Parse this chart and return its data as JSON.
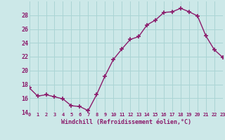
{
  "x": [
    0,
    1,
    2,
    3,
    4,
    5,
    6,
    7,
    8,
    9,
    10,
    11,
    12,
    13,
    14,
    15,
    16,
    17,
    18,
    19,
    20,
    21,
    22,
    23
  ],
  "y": [
    17.5,
    16.3,
    16.5,
    16.2,
    15.9,
    14.9,
    14.8,
    14.2,
    16.5,
    19.2,
    21.6,
    23.1,
    24.5,
    24.9,
    26.6,
    27.3,
    28.4,
    28.5,
    29.0,
    28.5,
    27.9,
    25.0,
    23.0,
    21.9
  ],
  "line_color": "#8b1a6b",
  "marker": "+",
  "bg_color": "#cce8e8",
  "grid_color": "#aad4d4",
  "xlabel": "Windchill (Refroidissement éolien,°C)",
  "xlabel_color": "#8b1a6b",
  "tick_color": "#8b1a6b",
  "ylim": [
    14,
    30
  ],
  "yticks": [
    14,
    16,
    18,
    20,
    22,
    24,
    26,
    28
  ],
  "xlim": [
    0,
    23
  ],
  "xticks": [
    0,
    1,
    2,
    3,
    4,
    5,
    6,
    7,
    8,
    9,
    10,
    11,
    12,
    13,
    14,
    15,
    16,
    17,
    18,
    19,
    20,
    21,
    22,
    23
  ]
}
